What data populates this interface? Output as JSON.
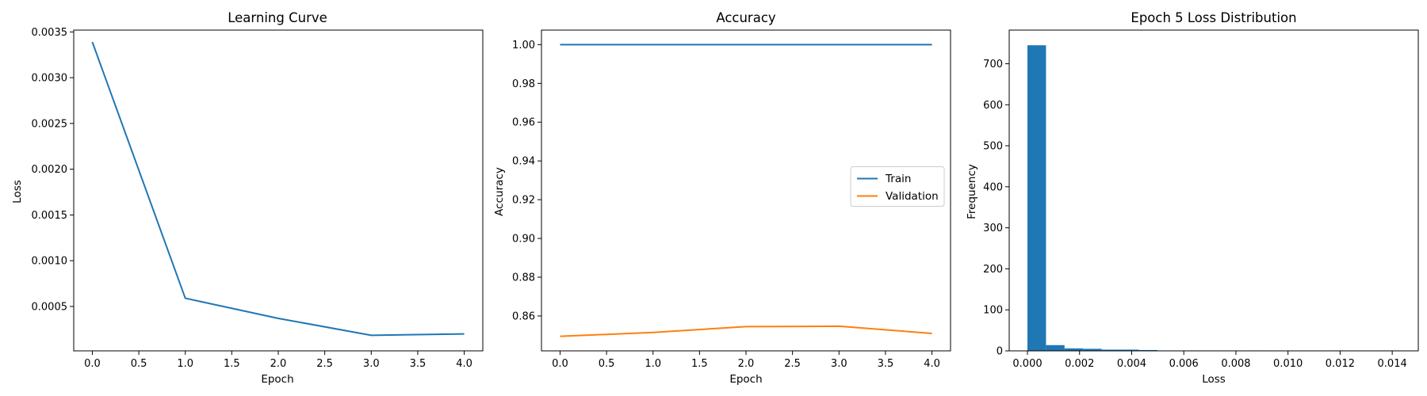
{
  "chart_data": [
    {
      "type": "line",
      "title": "Learning Curve",
      "xlabel": "Epoch",
      "ylabel": "Loss",
      "xlim": [
        -0.2,
        4.2
      ],
      "ylim": [
        1.5e-05,
        0.00352
      ],
      "xticks": [
        0.0,
        0.5,
        1.0,
        1.5,
        2.0,
        2.5,
        3.0,
        3.5,
        4.0
      ],
      "xtick_labels": [
        "0.0",
        "0.5",
        "1.0",
        "1.5",
        "2.0",
        "2.5",
        "3.0",
        "3.5",
        "4.0"
      ],
      "yticks": [
        0.0005,
        0.001,
        0.0015,
        0.002,
        0.0025,
        0.003,
        0.0035
      ],
      "ytick_labels": [
        "0.0005",
        "0.0010",
        "0.0015",
        "0.0020",
        "0.0025",
        "0.0030",
        "0.0035"
      ],
      "grid": false,
      "series": [
        {
          "x": [
            0,
            1,
            2,
            3,
            4
          ],
          "values": [
            0.00339,
            0.00059,
            0.00037,
            0.000185,
            0.0002
          ],
          "color": "#1f77b4"
        }
      ]
    },
    {
      "type": "line",
      "title": "Accuracy",
      "xlabel": "Epoch",
      "ylabel": "Accuracy",
      "xlim": [
        -0.2,
        4.2
      ],
      "ylim": [
        0.842,
        1.0075
      ],
      "xticks": [
        0.0,
        0.5,
        1.0,
        1.5,
        2.0,
        2.5,
        3.0,
        3.5,
        4.0
      ],
      "xtick_labels": [
        "0.0",
        "0.5",
        "1.0",
        "1.5",
        "2.0",
        "2.5",
        "3.0",
        "3.5",
        "4.0"
      ],
      "yticks": [
        0.86,
        0.88,
        0.9,
        0.92,
        0.94,
        0.96,
        0.98,
        1.0
      ],
      "ytick_labels": [
        "0.86",
        "0.88",
        "0.90",
        "0.92",
        "0.94",
        "0.96",
        "0.98",
        "1.00"
      ],
      "grid": false,
      "legend": "center-right",
      "series": [
        {
          "name": "Train",
          "x": [
            0,
            1,
            2,
            3,
            4
          ],
          "values": [
            1.0,
            1.0,
            1.0,
            1.0,
            1.0
          ],
          "color": "#1f77b4"
        },
        {
          "name": "Validation",
          "x": [
            0,
            1,
            2,
            3,
            4
          ],
          "values": [
            0.8495,
            0.8515,
            0.8545,
            0.8547,
            0.851
          ],
          "color": "#ff7f0e"
        }
      ]
    },
    {
      "type": "bar",
      "title": "Epoch 5 Loss Distribution",
      "xlabel": "Loss",
      "ylabel": "Frequency",
      "xlim": [
        -0.0007,
        0.015
      ],
      "ylim": [
        0,
        782
      ],
      "xticks": [
        0.0,
        0.002,
        0.004,
        0.006,
        0.008,
        0.01,
        0.012,
        0.014
      ],
      "xtick_labels": [
        "0.000",
        "0.002",
        "0.004",
        "0.006",
        "0.008",
        "0.010",
        "0.012",
        "0.014"
      ],
      "yticks": [
        0,
        100,
        200,
        300,
        400,
        500,
        600,
        700
      ],
      "ytick_labels": [
        "0",
        "100",
        "200",
        "300",
        "400",
        "500",
        "600",
        "700"
      ],
      "grid": false,
      "bin_edges": [
        0.0,
        0.000712,
        0.001424,
        0.002136,
        0.002848,
        0.00356,
        0.004272,
        0.004984,
        0.005696,
        0.006408,
        0.00712,
        0.007832,
        0.008544,
        0.009256,
        0.009968,
        0.01068,
        0.011392,
        0.012104,
        0.012816,
        0.013528,
        0.01424
      ],
      "values": [
        745,
        14,
        6,
        5,
        3,
        3,
        2,
        1,
        1,
        1,
        1,
        0,
        1,
        0,
        0,
        0,
        1,
        0,
        0,
        1
      ],
      "color": "#1f77b4"
    }
  ]
}
